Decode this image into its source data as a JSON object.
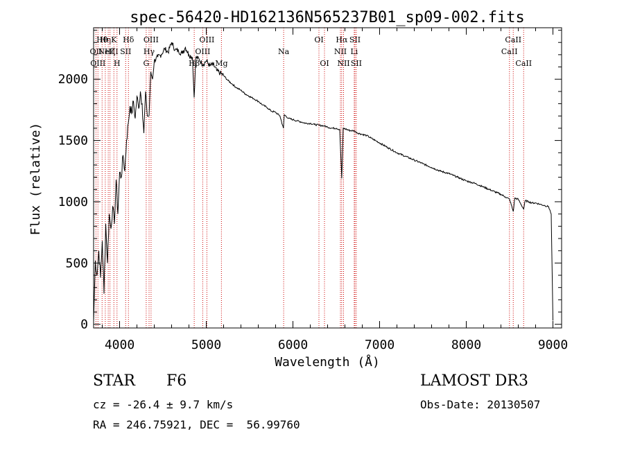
{
  "chart_data": {
    "type": "line",
    "title": "spec-56420-HD162136N565237B01_sp09-002.fits",
    "xlabel": "Wavelength (Å)",
    "ylabel": "Flux (relative)",
    "xlim": [
      3700,
      9100
    ],
    "ylim": [
      -30,
      2420
    ],
    "xticks": [
      4000,
      5000,
      6000,
      7000,
      8000,
      9000
    ],
    "yticks": [
      0,
      500,
      1000,
      1500,
      2000
    ],
    "series": [
      {
        "name": "flux",
        "x": [
          3700,
          3720,
          3740,
          3760,
          3780,
          3800,
          3820,
          3840,
          3860,
          3880,
          3900,
          3920,
          3940,
          3960,
          3980,
          4000,
          4020,
          4040,
          4060,
          4080,
          4100,
          4120,
          4140,
          4160,
          4180,
          4200,
          4220,
          4240,
          4260,
          4280,
          4300,
          4320,
          4340,
          4360,
          4380,
          4400,
          4440,
          4480,
          4520,
          4560,
          4600,
          4640,
          4680,
          4720,
          4760,
          4800,
          4840,
          4860,
          4880,
          4920,
          4960,
          5000,
          5040,
          5080,
          5120,
          5160,
          5200,
          5250,
          5300,
          5350,
          5400,
          5450,
          5500,
          5550,
          5600,
          5650,
          5700,
          5750,
          5800,
          5850,
          5890,
          5900,
          5950,
          6000,
          6050,
          6100,
          6150,
          6200,
          6250,
          6300,
          6350,
          6400,
          6450,
          6500,
          6540,
          6563,
          6580,
          6620,
          6660,
          6700,
          6750,
          6800,
          6850,
          6900,
          6950,
          7000,
          7100,
          7200,
          7300,
          7400,
          7500,
          7600,
          7700,
          7800,
          7900,
          8000,
          8100,
          8200,
          8300,
          8400,
          8450,
          8500,
          8542,
          8560,
          8600,
          8662,
          8680,
          8720,
          8760,
          8800,
          8850,
          8900,
          8950,
          8980,
          9000
        ],
        "values": [
          20,
          520,
          400,
          600,
          380,
          680,
          250,
          820,
          500,
          900,
          780,
          960,
          820,
          1180,
          900,
          1240,
          1200,
          1380,
          1250,
          1500,
          1640,
          1780,
          1720,
          1820,
          1680,
          1860,
          1760,
          1900,
          1800,
          1560,
          1900,
          1700,
          1700,
          2060,
          2000,
          2150,
          2180,
          2200,
          2250,
          2220,
          2300,
          2240,
          2230,
          2210,
          2260,
          2200,
          2180,
          1850,
          2180,
          2160,
          2120,
          2150,
          2110,
          2120,
          2070,
          2050,
          2030,
          1990,
          1960,
          1930,
          1910,
          1880,
          1860,
          1840,
          1820,
          1790,
          1770,
          1740,
          1730,
          1700,
          1600,
          1710,
          1680,
          1670,
          1660,
          1650,
          1640,
          1640,
          1630,
          1625,
          1620,
          1610,
          1600,
          1600,
          1590,
          1190,
          1600,
          1590,
          1580,
          1580,
          1560,
          1550,
          1540,
          1520,
          1500,
          1480,
          1440,
          1400,
          1370,
          1340,
          1310,
          1280,
          1250,
          1230,
          1200,
          1170,
          1150,
          1120,
          1090,
          1060,
          1040,
          1020,
          920,
          1030,
          1020,
          940,
          1010,
          1000,
          990,
          990,
          980,
          970,
          960,
          900,
          30
        ]
      }
    ],
    "lines": [
      {
        "wl": 3727,
        "label": "OII",
        "row": 2
      },
      {
        "wl": 3750,
        "label": "OIII",
        "row": 3
      },
      {
        "wl": 3798,
        "label": "Hθ",
        "row": 1
      },
      {
        "wl": 3835,
        "label": "Hη",
        "row": 1
      },
      {
        "wl": 3869,
        "label": "NeIII",
        "row": 2
      },
      {
        "wl": 3889,
        "label": "Hζ",
        "row": 2
      },
      {
        "wl": 3934,
        "label": "K",
        "row": 1
      },
      {
        "wl": 3970,
        "label": "H",
        "row": 3
      },
      {
        "wl": 4102,
        "label": "Hδ",
        "row": 1
      },
      {
        "wl": 4070,
        "label": "SII",
        "row": 2
      },
      {
        "wl": 4307,
        "label": "G",
        "row": 3
      },
      {
        "wl": 4340,
        "label": "Hγ",
        "row": 2
      },
      {
        "wl": 4363,
        "label": "OIII",
        "row": 1
      },
      {
        "wl": 4861,
        "label": "Hβ",
        "row": 3
      },
      {
        "wl": 4959,
        "label": "OIII",
        "row": 2
      },
      {
        "wl": 5007,
        "label": "OIII",
        "row": 1
      },
      {
        "wl": 5175,
        "label": "Mg",
        "row": 3
      },
      {
        "wl": 5893,
        "label": "Na",
        "row": 2
      },
      {
        "wl": 6300,
        "label": "OI",
        "row": 1
      },
      {
        "wl": 6364,
        "label": "OI",
        "row": 3
      },
      {
        "wl": 6548,
        "label": "NII",
        "row": 2
      },
      {
        "wl": 6563,
        "label": "Hα",
        "row": 1
      },
      {
        "wl": 6584,
        "label": "NII",
        "row": 3
      },
      {
        "wl": 6707,
        "label": "Li",
        "row": 2
      },
      {
        "wl": 6716,
        "label": "SII",
        "row": 1
      },
      {
        "wl": 6731,
        "label": "SII",
        "row": 3
      },
      {
        "wl": 8498,
        "label": "CaII",
        "row": 2
      },
      {
        "wl": 8542,
        "label": "CaII",
        "row": 1
      },
      {
        "wl": 8662,
        "label": "CaII",
        "row": 3
      }
    ]
  },
  "info": {
    "object_type": "STAR",
    "subclass": "F6",
    "survey": "LAMOST DR3",
    "cz": "cz = -26.4 ± 9.7 km/s",
    "obs_date": "Obs-Date: 20130507",
    "coords": "RA = 246.75921, DEC =  56.99760"
  }
}
